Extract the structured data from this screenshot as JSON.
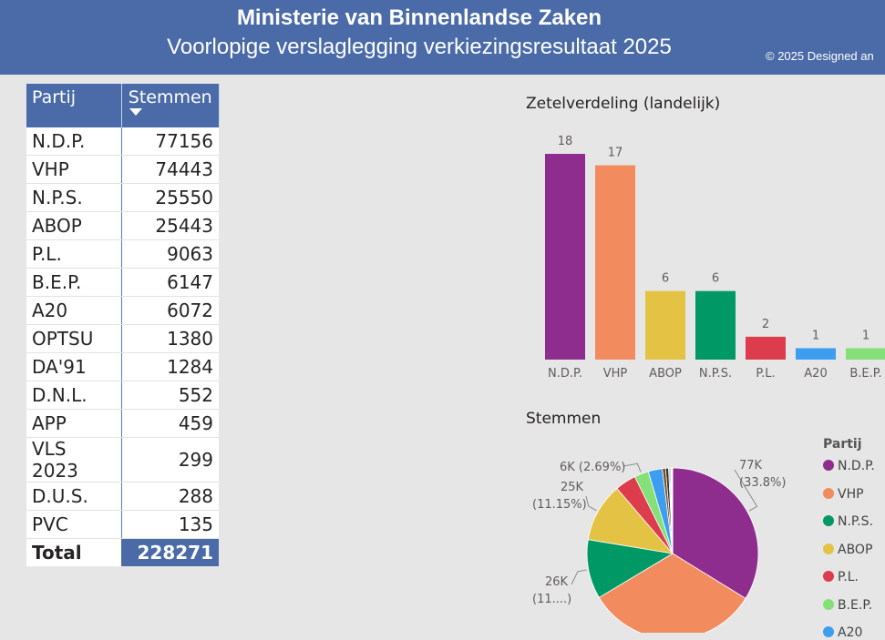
{
  "header": {
    "title": "Ministerie van Binnenlandse Zaken",
    "subtitle": "Voorlopige verslaglegging verkiezingsresultaat 2025",
    "copyright": "© 2025 Designed an"
  },
  "table": {
    "col_party": "Partij",
    "col_votes": "Stemmen",
    "rows": [
      {
        "party": "N.D.P.",
        "votes": "77156"
      },
      {
        "party": "VHP",
        "votes": "74443"
      },
      {
        "party": "N.P.S.",
        "votes": "25550"
      },
      {
        "party": "ABOP",
        "votes": "25443"
      },
      {
        "party": "P.L.",
        "votes": "9063"
      },
      {
        "party": "B.E.P.",
        "votes": "6147"
      },
      {
        "party": "A20",
        "votes": "6072"
      },
      {
        "party": "OPTSU",
        "votes": "1380"
      },
      {
        "party": "DA'91",
        "votes": "1284"
      },
      {
        "party": "D.N.L.",
        "votes": "552"
      },
      {
        "party": "APP",
        "votes": "459"
      },
      {
        "party": "VLS 2023",
        "votes": "299"
      },
      {
        "party": "D.U.S.",
        "votes": "288"
      },
      {
        "party": "PVC",
        "votes": "135"
      }
    ],
    "total_label": "Total",
    "total_value": "228271"
  },
  "seats_chart": {
    "title": "Zetelverdeling (landelijk)",
    "chart_data": {
      "type": "bar",
      "categories": [
        "N.D.P.",
        "VHP",
        "ABOP",
        "N.P.S.",
        "P.L.",
        "A20",
        "B.E.P."
      ],
      "values": [
        18,
        17,
        6,
        6,
        2,
        1,
        1
      ],
      "colors": [
        "#8f2d8f",
        "#f28b5e",
        "#e4c244",
        "#009966",
        "#dc3c4c",
        "#3d9ef0",
        "#86e07a"
      ]
    }
  },
  "votes_chart": {
    "title": "Stemmen",
    "legend_title": "Partij",
    "legend": [
      {
        "label": "N.D.P.",
        "color": "#8f2d8f"
      },
      {
        "label": "VHP",
        "color": "#f28b5e"
      },
      {
        "label": "N.P.S.",
        "color": "#009966"
      },
      {
        "label": "ABOP",
        "color": "#e4c244"
      },
      {
        "label": "P.L.",
        "color": "#dc3c4c"
      },
      {
        "label": "B.E.P.",
        "color": "#86e07a"
      },
      {
        "label": "A20",
        "color": "#3d9ef0"
      }
    ],
    "chart_data": {
      "type": "pie",
      "slices": [
        {
          "label": "N.D.P.",
          "value": 77156,
          "color": "#8f2d8f"
        },
        {
          "label": "VHP",
          "value": 74443,
          "color": "#f28b5e"
        },
        {
          "label": "N.P.S.",
          "value": 25550,
          "color": "#009966"
        },
        {
          "label": "ABOP",
          "value": 25443,
          "color": "#e4c244"
        },
        {
          "label": "P.L.",
          "value": 9063,
          "color": "#dc3c4c"
        },
        {
          "label": "B.E.P.",
          "value": 6147,
          "color": "#86e07a"
        },
        {
          "label": "A20",
          "value": 6072,
          "color": "#3d9ef0"
        },
        {
          "label": "OPTSU",
          "value": 1380,
          "color": "#7a4a1c"
        },
        {
          "label": "DA'91",
          "value": 1284,
          "color": "#333333"
        },
        {
          "label": "D.N.L.",
          "value": 552,
          "color": "#9a9a9a"
        },
        {
          "label": "APP",
          "value": 459,
          "color": "#1f4e96"
        },
        {
          "label": "VLS 2023",
          "value": 299,
          "color": "#c12a6e"
        },
        {
          "label": "D.U.S.",
          "value": 288,
          "color": "#4a7c2a"
        },
        {
          "label": "PVC",
          "value": 135,
          "color": "#8a6cd1"
        }
      ],
      "data_labels": [
        {
          "slice": "N.D.P.",
          "line1": "77K",
          "line2": "(33.8%)"
        },
        {
          "slice": "N.P.S.",
          "line1": "26K",
          "line2": "(11....)"
        },
        {
          "slice": "ABOP",
          "line1": "25K",
          "line2": "(11.15%)"
        },
        {
          "slice": "B.E.P.",
          "line1": "6K (2.69%)",
          "line2": ""
        }
      ]
    }
  }
}
